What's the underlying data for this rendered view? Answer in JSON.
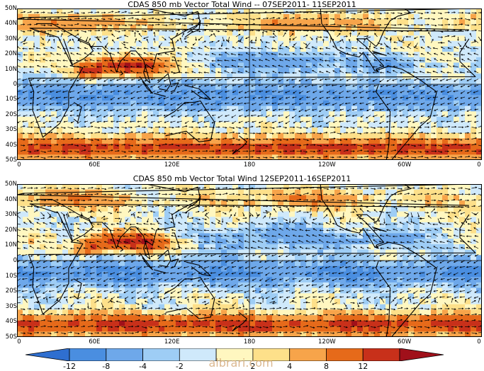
{
  "panels": [
    {
      "title": "CDAS 850 mb Vector Total Wind -- 07SEP2011- 11SEP2011",
      "lat_labels": [
        "50N",
        "40N",
        "30N",
        "20N",
        "10N",
        "0",
        "10S",
        "20S",
        "30S",
        "40S",
        "50S"
      ],
      "lon_labels": [
        "0",
        "60E",
        "120E",
        "180",
        "120W",
        "60W",
        "0"
      ]
    },
    {
      "title": "CDAS 850 mb Vector Total Wind 12SEP2011-16SEP2011",
      "lat_labels": [
        "50N",
        "40N",
        "30N",
        "20N",
        "10N",
        "0",
        "10S",
        "20S",
        "30S",
        "40S",
        "50S"
      ],
      "lon_labels": [
        "0",
        "60E",
        "120E",
        "180",
        "120W",
        "60W",
        "0"
      ]
    }
  ],
  "colorbar": {
    "labels": [
      "-12",
      "-8",
      "-4",
      "-2",
      "2",
      "4",
      "8",
      "12"
    ],
    "colors": [
      "#2f6fd0",
      "#4a8ee0",
      "#6ea8ea",
      "#9ecdf5",
      "#cfe9fb",
      "#fff7c0",
      "#fde08a",
      "#f7a44a",
      "#e66a1a",
      "#c8301a",
      "#a0101a"
    ]
  },
  "watermark": "albrari.com"
}
